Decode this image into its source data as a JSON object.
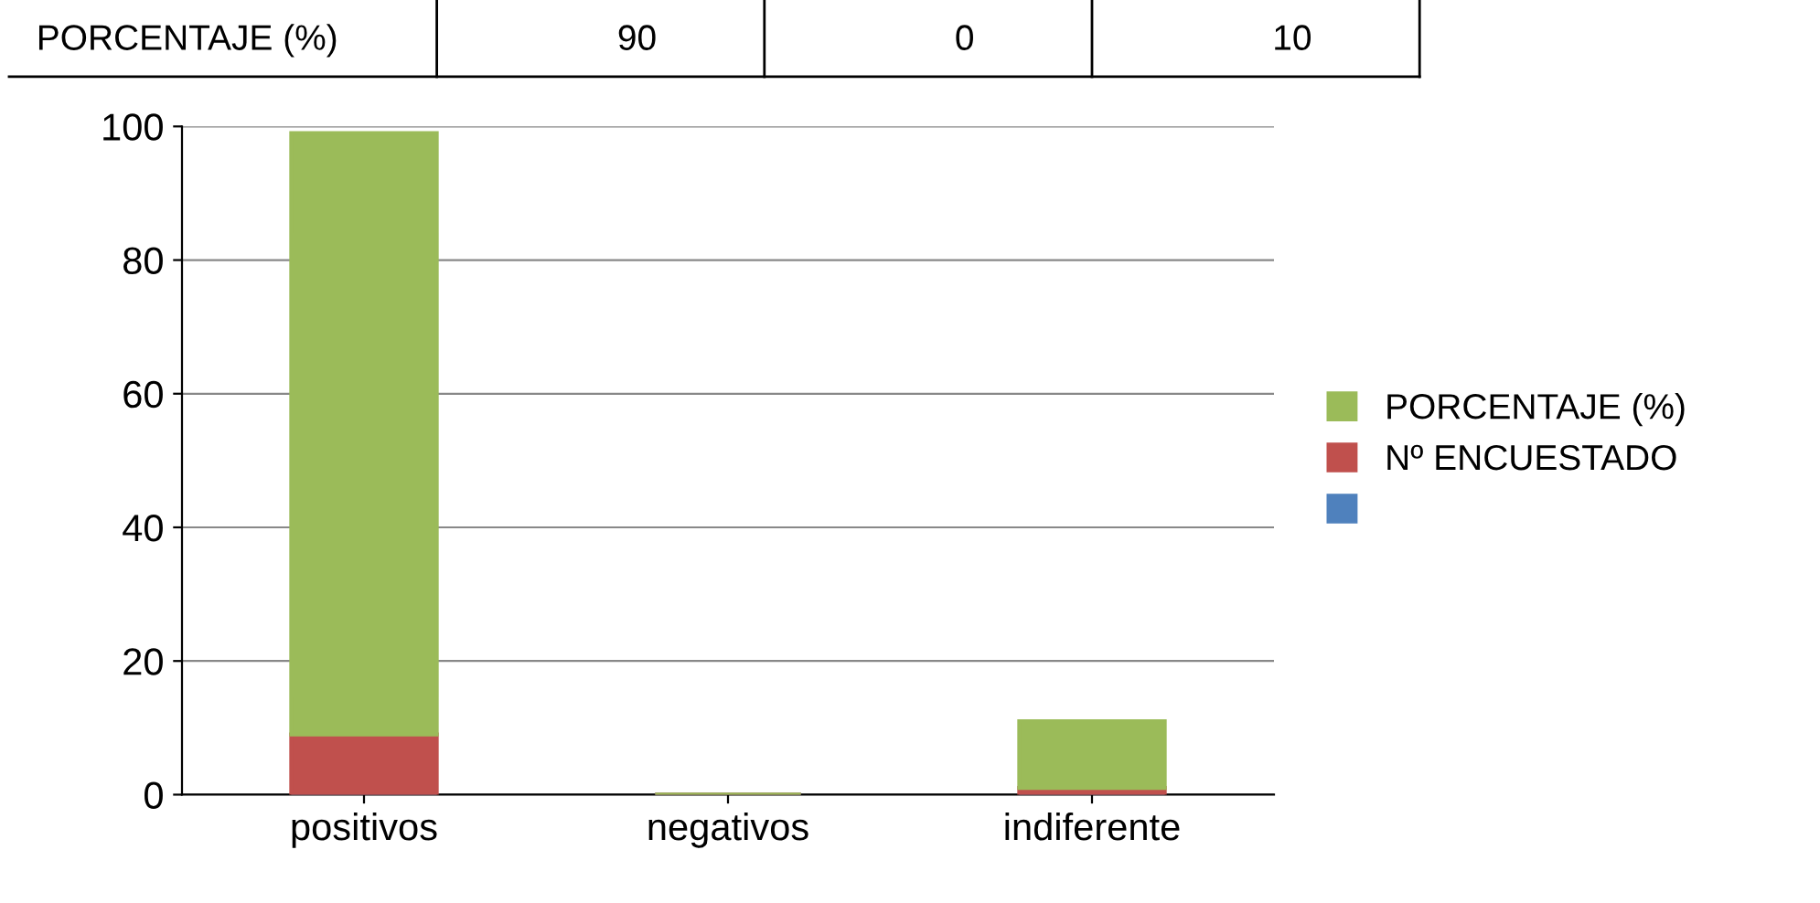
{
  "chart_data": {
    "type": "bar",
    "stacked": true,
    "categories": [
      "positivos",
      "negativos",
      "indiferente"
    ],
    "series": [
      {
        "color": "#4f81bd",
        "values": [
          0,
          0,
          0
        ]
      },
      {
        "name": "Nº ENCUESTADO",
        "color": "#c0504d",
        "values": [
          9,
          0,
          1
        ]
      },
      {
        "name": "PORCENTAJE (%)",
        "color": "#9bbb59",
        "values": [
          90,
          0,
          10
        ]
      }
    ],
    "ylim": [
      0,
      100
    ],
    "yticks": [
      0,
      20,
      40,
      60,
      80,
      100
    ],
    "grid": "y",
    "legend": "right",
    "annotations": [
      "PORCENTAJE (%)",
      "90",
      "0",
      "10"
    ]
  }
}
